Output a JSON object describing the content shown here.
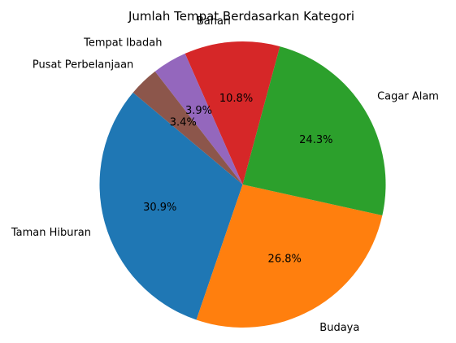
{
  "chart_data": {
    "type": "pie",
    "title": "Jumlah Tempat Berdasarkan Kategori",
    "categories": [
      "Taman Hiburan",
      "Budaya",
      "Cagar Alam",
      "Bahari",
      "Tempat Ibadah",
      "Pusat Perbelanjaan"
    ],
    "values": [
      30.9,
      26.8,
      24.3,
      10.8,
      3.9,
      3.4
    ],
    "percent_labels": [
      "30.9%",
      "26.8%",
      "24.3%",
      "10.8%",
      "3.9%",
      "3.4%"
    ],
    "colors": [
      "#1f77b4",
      "#ff7f0e",
      "#2ca02c",
      "#d62728",
      "#9467bd",
      "#8c564b"
    ],
    "start_angle_degrees": 140,
    "direction": "counterclockwise"
  }
}
